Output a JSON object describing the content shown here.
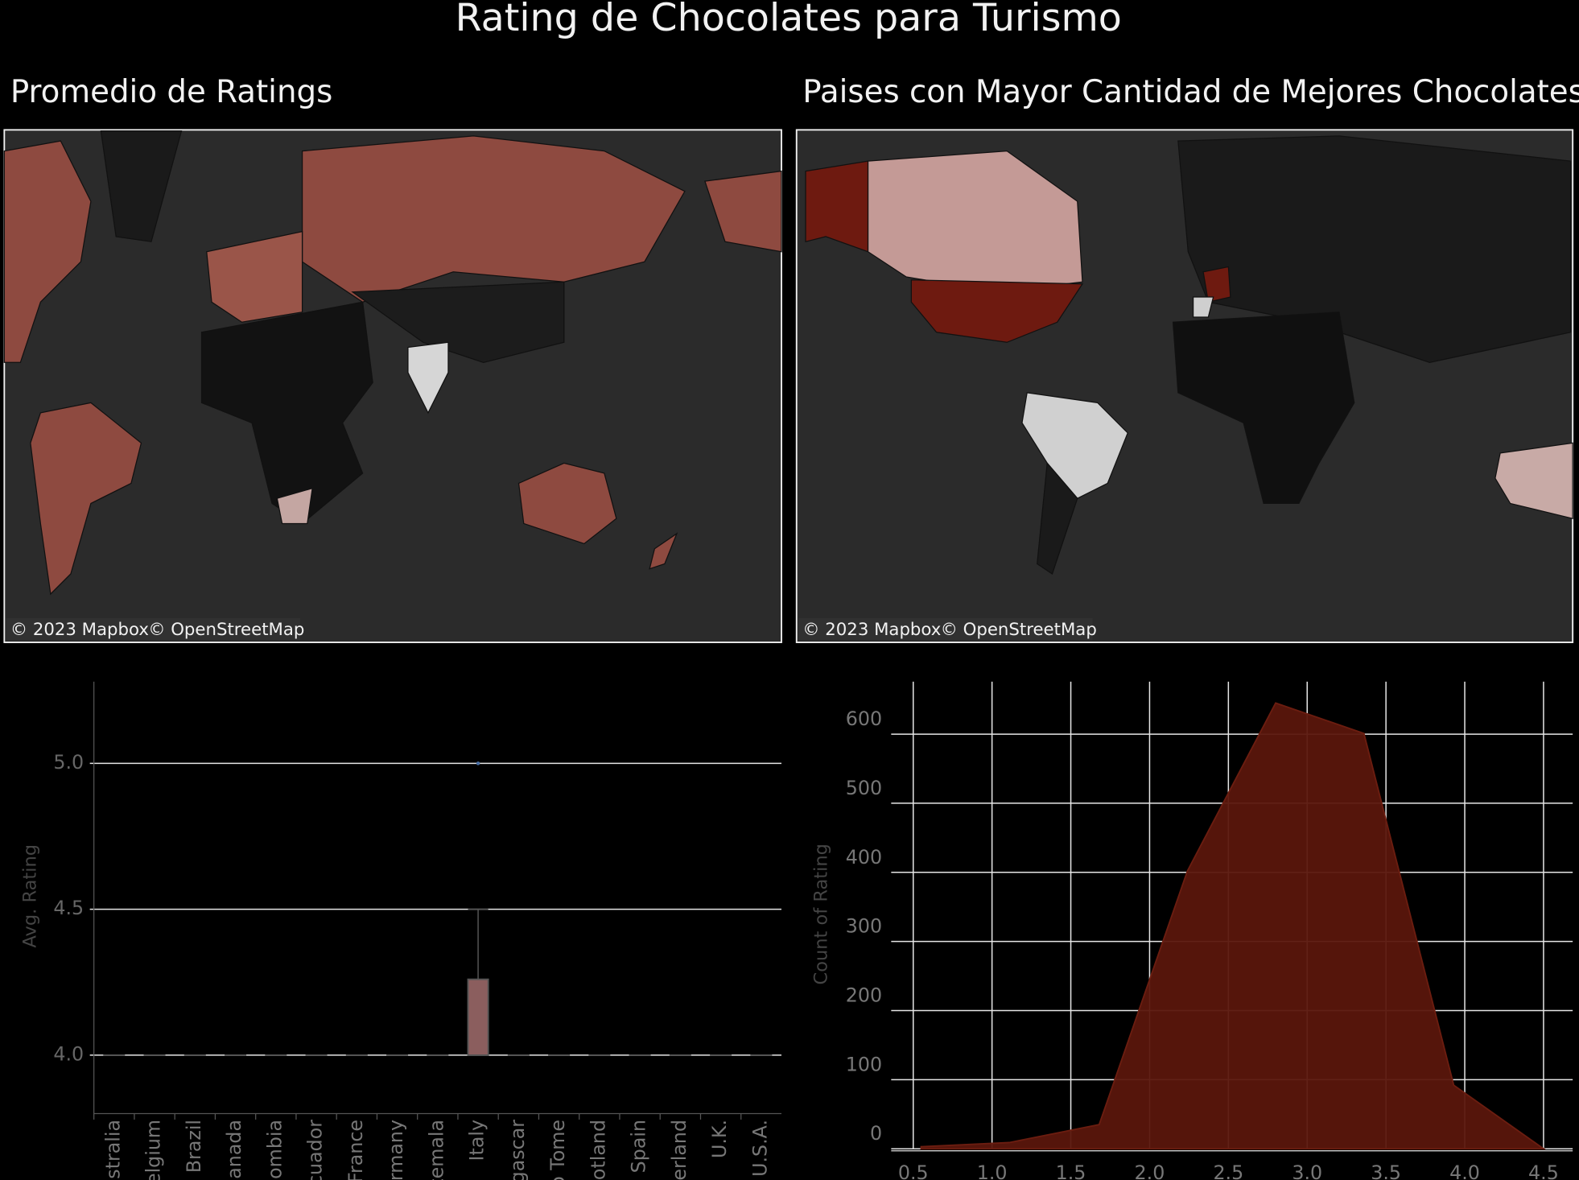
{
  "title": "Rating de Chocolates para Turismo",
  "maps": [
    {
      "title": "Promedio de Ratings",
      "attribution": [
        "© 2023 Mapbox",
        "© OpenStreetMap"
      ]
    },
    {
      "title": "Paises con Mayor Cantidad de Mejores Chocolates",
      "attribution": [
        "© 2023 Mapbox",
        "© OpenStreetMap"
      ]
    }
  ],
  "chart_data": [
    {
      "type": "box",
      "y_label": "Avg. Rating",
      "categories": [
        "Australia",
        "Belgium",
        "Brazil",
        "Canada",
        "Colombia",
        "Ecuador",
        "France",
        "Germany",
        "Guatemala",
        "Italy",
        "Madagascar",
        "Sao Tome",
        "Scotland",
        "Spain",
        "Switzerland",
        "U.K.",
        "U.S.A."
      ],
      "min": [
        4,
        4,
        4,
        4,
        4,
        4,
        4,
        4,
        4,
        4,
        4,
        4,
        4,
        4,
        4,
        4,
        4
      ],
      "q1": [
        4,
        4,
        4,
        4,
        4,
        4,
        4,
        4,
        4,
        4,
        4,
        4,
        4,
        4,
        4,
        4,
        4
      ],
      "median": [
        4,
        4,
        4,
        4,
        4,
        4,
        4,
        4,
        4,
        4,
        4,
        4,
        4,
        4,
        4,
        4,
        4
      ],
      "q3": [
        4,
        4,
        4,
        4,
        4,
        4,
        4,
        4,
        4,
        4.26,
        4,
        4,
        4,
        4,
        4,
        4,
        4
      ],
      "max": [
        4,
        4,
        4,
        4,
        4,
        4,
        4,
        4,
        4,
        4.5,
        4,
        4,
        4,
        4,
        4,
        4,
        4
      ],
      "outliers": [
        null,
        null,
        null,
        null,
        null,
        null,
        null,
        null,
        null,
        5,
        null,
        null,
        null,
        null,
        null,
        null,
        null
      ],
      "color": "#8b5e5e",
      "ylim": [
        3.8,
        5.28
      ],
      "yticks": [
        {
          "value": 4,
          "label": "4.0"
        },
        4.5,
        {
          "value": 5,
          "label": "5.0"
        }
      ],
      "grid": true
    },
    {
      "type": "area",
      "y_label": "Count of Rating",
      "x": [
        0.55,
        1.11,
        1.68,
        2.24,
        2.8,
        3.36,
        3.93,
        4.5
      ],
      "values": [
        3,
        9,
        35,
        402,
        645,
        601,
        92,
        0
      ],
      "color": "#5a160c",
      "xlim": [
        0.36,
        4.685
      ],
      "xticks": [
        0.5,
        {
          "value": 1,
          "label": "1.0"
        },
        1.5,
        {
          "value": 2,
          "label": "2.0"
        },
        2.5,
        {
          "value": 3,
          "label": "3.0"
        },
        3.5,
        {
          "value": 4,
          "label": "4.0"
        },
        4.5
      ],
      "ylim": [
        0,
        676
      ],
      "yticks": [
        0,
        100,
        200,
        300,
        400,
        500,
        600
      ],
      "grid": true
    }
  ]
}
